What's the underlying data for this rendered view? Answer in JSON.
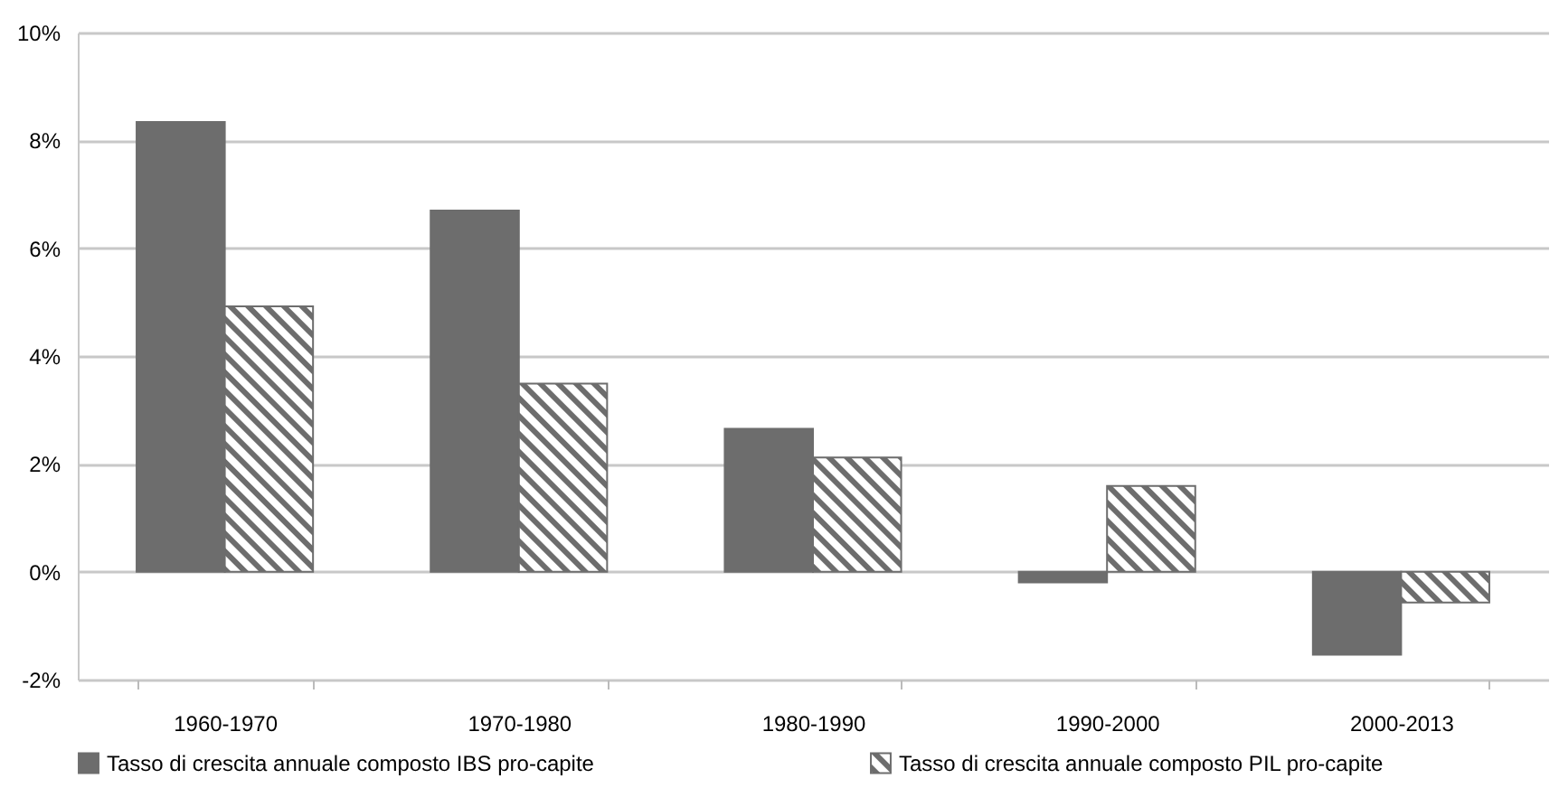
{
  "chart_data": {
    "type": "bar",
    "categories": [
      "1960-1970",
      "1970-1980",
      "1980-1990",
      "1990-2000",
      "2000-2013"
    ],
    "series": [
      {
        "name": "Tasso di crescita annuale composto IBS pro-capite",
        "color": "#6d6d6d",
        "values": [
          8.34,
          6.7,
          2.65,
          -0.2,
          -1.54
        ]
      },
      {
        "name": "Tasso di crescita annuale composto PIL pro-capite",
        "color": "#6d6d6d",
        "values": [
          4.92,
          3.49,
          2.12,
          1.59,
          -0.57
        ]
      }
    ],
    "ylim": [
      -2,
      10
    ],
    "yticks": [
      {
        "value": -2,
        "label": "-2%"
      },
      {
        "value": 0,
        "label": "0%"
      },
      {
        "value": 2,
        "label": "2%"
      },
      {
        "value": 4,
        "label": "4%"
      },
      {
        "value": 6,
        "label": "6%"
      },
      {
        "value": 8,
        "label": "8%"
      },
      {
        "value": 10,
        "label": "10%"
      }
    ],
    "grid": "y",
    "legend": "bottom"
  }
}
